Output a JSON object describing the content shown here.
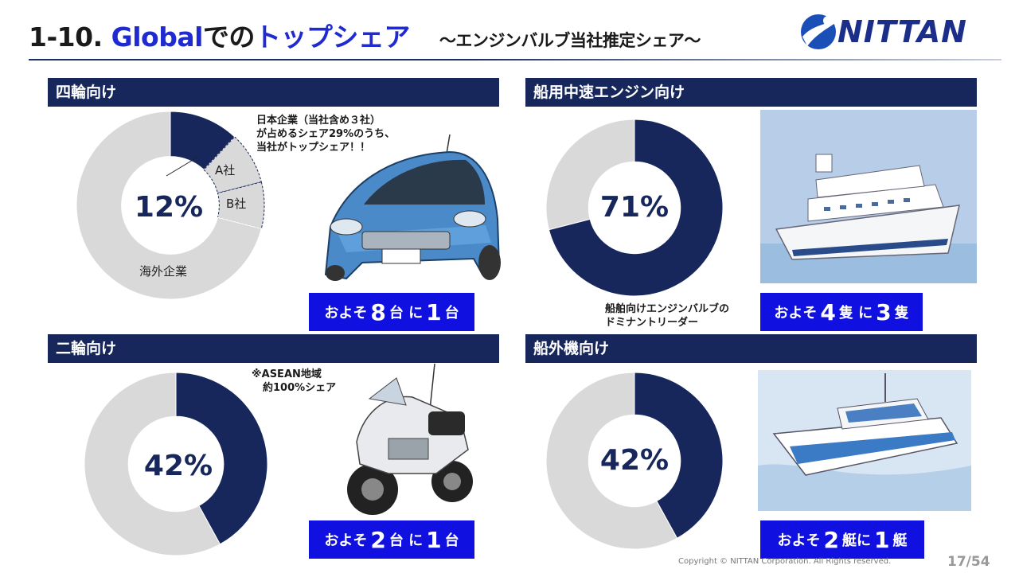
{
  "header": {
    "title_num": "1-10.",
    "title_global": "Global",
    "title_de_no": "での",
    "title_topshare": "トップシェア",
    "subtitle": "～エンジンバルブ当社推定シェア～",
    "logo_text": "NITTAN"
  },
  "colors": {
    "navy": "#17275c",
    "light_gray": "#d9d9d9",
    "callout_blue": "#1010e0",
    "title_blue": "#1f2bd0"
  },
  "sections": {
    "auto": {
      "heading": "四輪向け",
      "ratio": {
        "prefix": "およそ",
        "num1": "8",
        "unit1": "台",
        "mid": "に",
        "num2": "1",
        "unit2": "台"
      },
      "note": [
        "日本企業（当社含め３社）",
        "が占めるシェア29%のうち、",
        "当社がトップシェア！！"
      ],
      "illustration": "car-illustration"
    },
    "marine": {
      "heading": "船用中速エンジン向け",
      "ratio": {
        "prefix": "およそ",
        "num1": "4",
        "unit1": "隻",
        "mid": "に",
        "num2": "3",
        "unit2": "隻"
      },
      "note": [
        "船舶向けエンジンバルブの",
        "ドミナントリーダー"
      ],
      "illustration": "ship-illustration"
    },
    "moto": {
      "heading": "二輪向け",
      "ratio": {
        "prefix": "およそ",
        "num1": "2",
        "unit1": "台",
        "mid": "に",
        "num2": "1",
        "unit2": "台"
      },
      "note": [
        "※ASEAN地域",
        "約100%シェア"
      ],
      "illustration": "motorcycle-illustration"
    },
    "outboard": {
      "heading": "船外機向け",
      "ratio": {
        "prefix": "およそ",
        "num1": "2",
        "unit1": "艇",
        "mid": "に",
        "num2": "1",
        "unit2": "艇"
      },
      "illustration": "boat-illustration"
    }
  },
  "chart_data": [
    {
      "type": "pie",
      "donut": true,
      "section": "四輪向け",
      "center_label": "12%",
      "slices": [
        {
          "label": "",
          "value": 12,
          "color": "#17275c"
        },
        {
          "label": "A社",
          "value": 9,
          "color": "#d9d9d9"
        },
        {
          "label": "B社",
          "value": 8,
          "color": "#d9d9d9"
        },
        {
          "label": "海外企業",
          "value": 71,
          "color": "#d9d9d9"
        }
      ]
    },
    {
      "type": "pie",
      "donut": true,
      "section": "船用中速エンジン向け",
      "center_label": "71%",
      "slices": [
        {
          "label": "",
          "value": 71,
          "color": "#17275c"
        },
        {
          "label": "",
          "value": 29,
          "color": "#d9d9d9"
        }
      ]
    },
    {
      "type": "pie",
      "donut": true,
      "section": "二輪向け",
      "center_label": "42%",
      "slices": [
        {
          "label": "",
          "value": 42,
          "color": "#17275c"
        },
        {
          "label": "",
          "value": 58,
          "color": "#d9d9d9"
        }
      ]
    },
    {
      "type": "pie",
      "donut": true,
      "section": "船外機向け",
      "center_label": "42%",
      "slices": [
        {
          "label": "",
          "value": 42,
          "color": "#17275c"
        },
        {
          "label": "",
          "value": 58,
          "color": "#d9d9d9"
        }
      ]
    }
  ],
  "footer": {
    "copyright": "Copyright © NITTAN Corporation. All Rights reserved.",
    "page": "17/54"
  }
}
